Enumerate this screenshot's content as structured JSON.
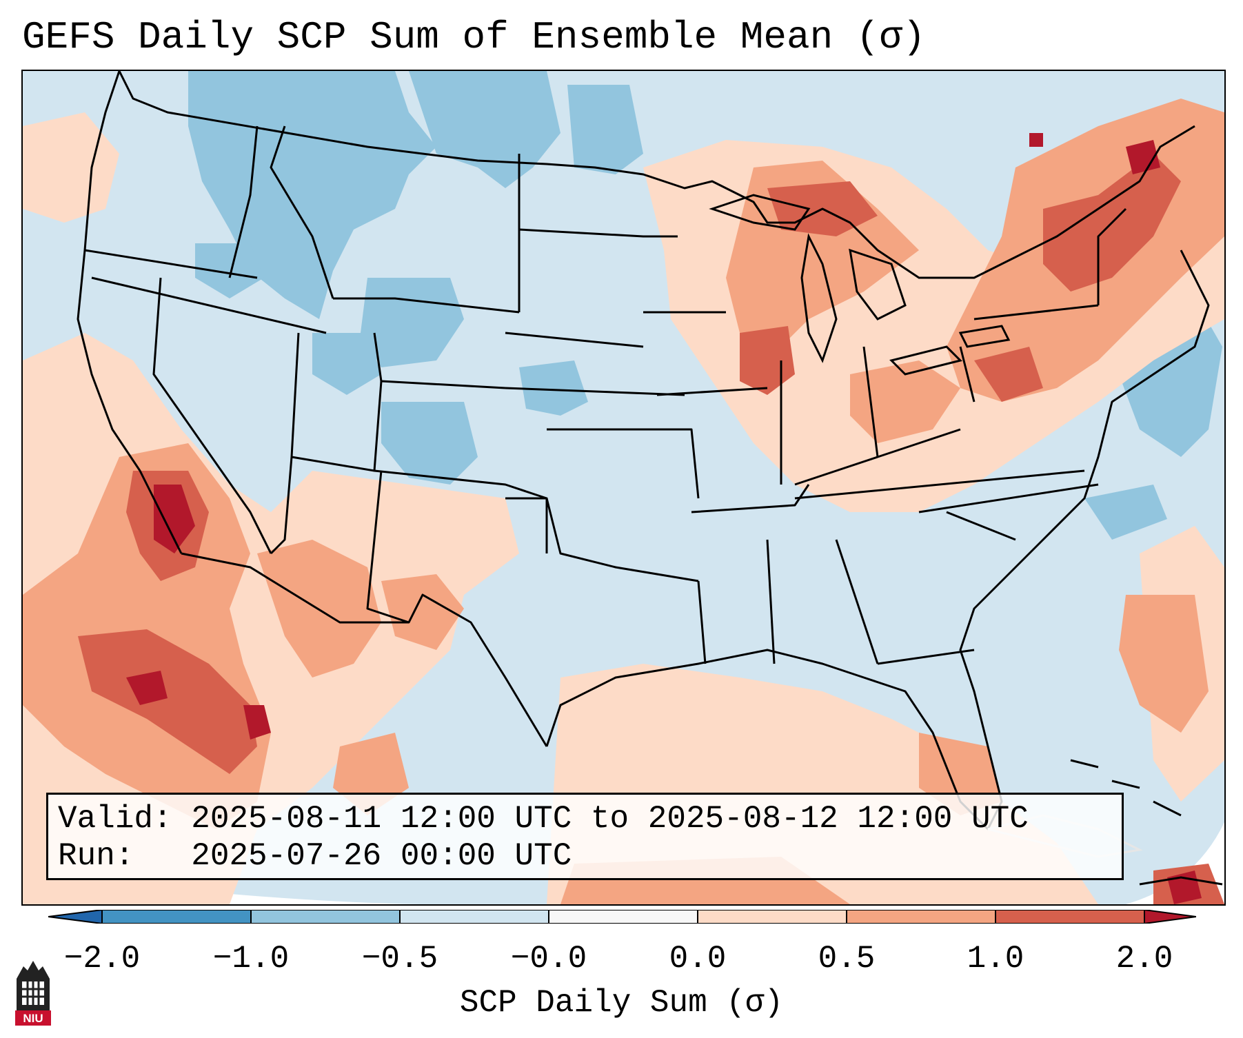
{
  "title": "GEFS Daily SCP Sum of Ensemble Mean (σ)",
  "info": {
    "valid_line": "Valid: 2025-08-11 12:00 UTC to 2025-08-12 12:00 UTC",
    "run_line": "Run:   2025-07-26 00:00 UTC"
  },
  "colorbar": {
    "label": "SCP Daily Sum (σ)",
    "ticks": [
      "−2.0",
      "−1.0",
      "−0.5",
      "−0.0",
      "0.0",
      "0.5",
      "1.0",
      "2.0"
    ],
    "segments": [
      {
        "range": [
          -2.0,
          -1.0
        ],
        "color": "#4393c3"
      },
      {
        "range": [
          -1.0,
          -0.5
        ],
        "color": "#92c5de"
      },
      {
        "range": [
          -0.5,
          -0.0
        ],
        "color": "#d1e5f0"
      },
      {
        "range": [
          -0.0,
          0.0
        ],
        "color": "#f7f7f7"
      },
      {
        "range": [
          0.0,
          0.5
        ],
        "color": "#fddbc7"
      },
      {
        "range": [
          0.5,
          1.0
        ],
        "color": "#f4a582"
      },
      {
        "range": [
          1.0,
          2.0
        ],
        "color": "#d6604d"
      }
    ],
    "under_color": "#2166ac",
    "over_color": "#b2182b"
  },
  "map": {
    "region": "Contiguous United States",
    "background_color": "#d1e5f0",
    "anomaly_areas": [
      {
        "area": "Southwest US / Southern California",
        "class": "strong-positive",
        "color": "#d6604d"
      },
      {
        "area": "Baja California / Gulf of California",
        "class": "strong-positive",
        "color": "#d6604d"
      },
      {
        "area": "Great Lakes / Upper Midwest",
        "class": "positive",
        "color": "#f4a582"
      },
      {
        "area": "Northeast US / New England",
        "class": "positive",
        "color": "#f4a582"
      },
      {
        "area": "Northern Rockies / Idaho / Montana",
        "class": "negative",
        "color": "#92c5de"
      },
      {
        "area": "Colorado / Wyoming",
        "class": "negative",
        "color": "#92c5de"
      },
      {
        "area": "Florida / Gulf of Mexico",
        "class": "positive",
        "color": "#fddbc7"
      },
      {
        "area": "Atlantic east of New England",
        "class": "negative",
        "color": "#92c5de"
      }
    ]
  },
  "logo": {
    "text": "NIU",
    "color": "#c8102e"
  }
}
